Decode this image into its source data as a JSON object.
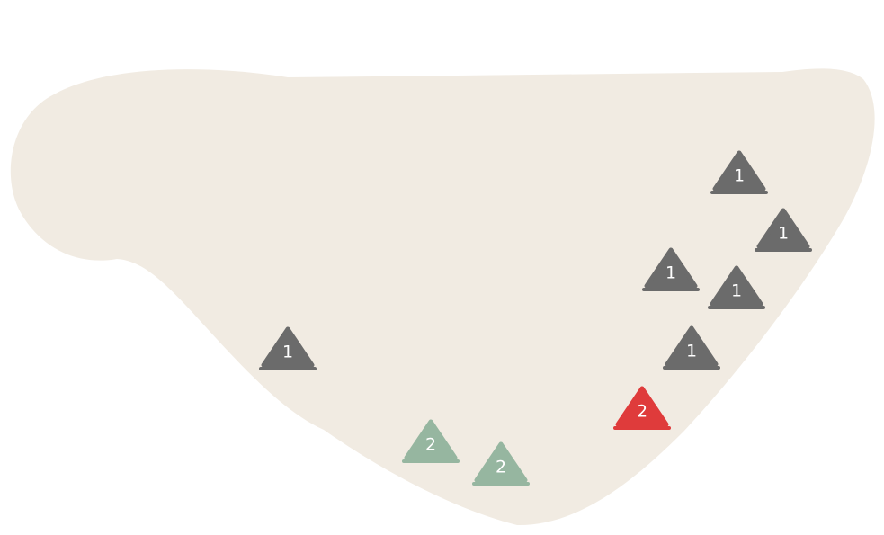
{
  "colors": {
    "background": "#ffffff",
    "region_fill": "#f1ebe2",
    "neutral_piece": "#6b6b6b",
    "player_piece": "#96b6a0",
    "enemy_piece": "#df3b3b"
  },
  "pieces": [
    {
      "id": "n1",
      "team": "neutral",
      "label": "1"
    },
    {
      "id": "n2",
      "team": "neutral",
      "label": "1"
    },
    {
      "id": "n3",
      "team": "neutral",
      "label": "1"
    },
    {
      "id": "n4",
      "team": "neutral",
      "label": "1"
    },
    {
      "id": "n5",
      "team": "neutral",
      "label": "1"
    },
    {
      "id": "n6",
      "team": "neutral",
      "label": "1"
    },
    {
      "id": "e1",
      "team": "enemy",
      "label": "2"
    },
    {
      "id": "p1",
      "team": "player",
      "label": "2"
    },
    {
      "id": "p2",
      "team": "player",
      "label": "2"
    }
  ]
}
